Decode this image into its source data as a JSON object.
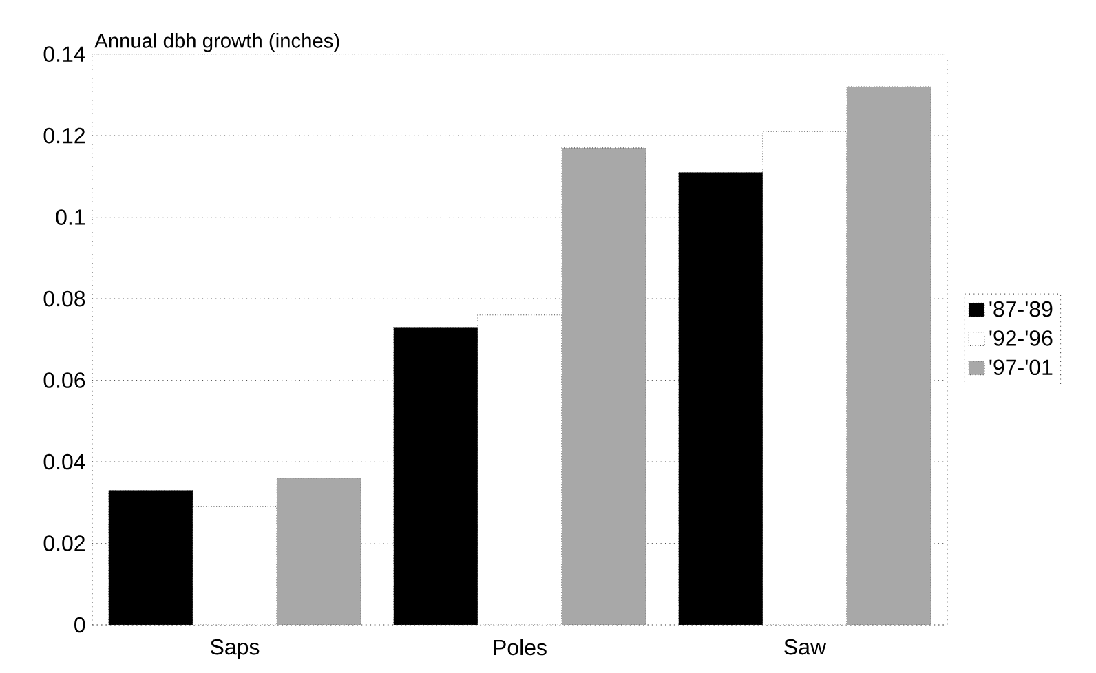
{
  "chart_data": {
    "type": "bar",
    "ylabel": "Annual dbh growth (inches)",
    "categories": [
      "Saps",
      "Poles",
      "Saw"
    ],
    "series": [
      {
        "name": "'87-'89",
        "color": "#000000",
        "values": [
          0.033,
          0.073,
          0.111
        ]
      },
      {
        "name": "'92-'96",
        "color": "#ffffff",
        "values": [
          0.029,
          0.076,
          0.121
        ]
      },
      {
        "name": "'97-'01",
        "color": "#a8a8a8",
        "values": [
          0.036,
          0.117,
          0.132
        ]
      }
    ],
    "ylim": [
      0,
      0.14
    ],
    "yticks": [
      0,
      0.02,
      0.04,
      0.06,
      0.08,
      0.1,
      0.12,
      0.14
    ],
    "grid": "y",
    "legend": "right"
  }
}
